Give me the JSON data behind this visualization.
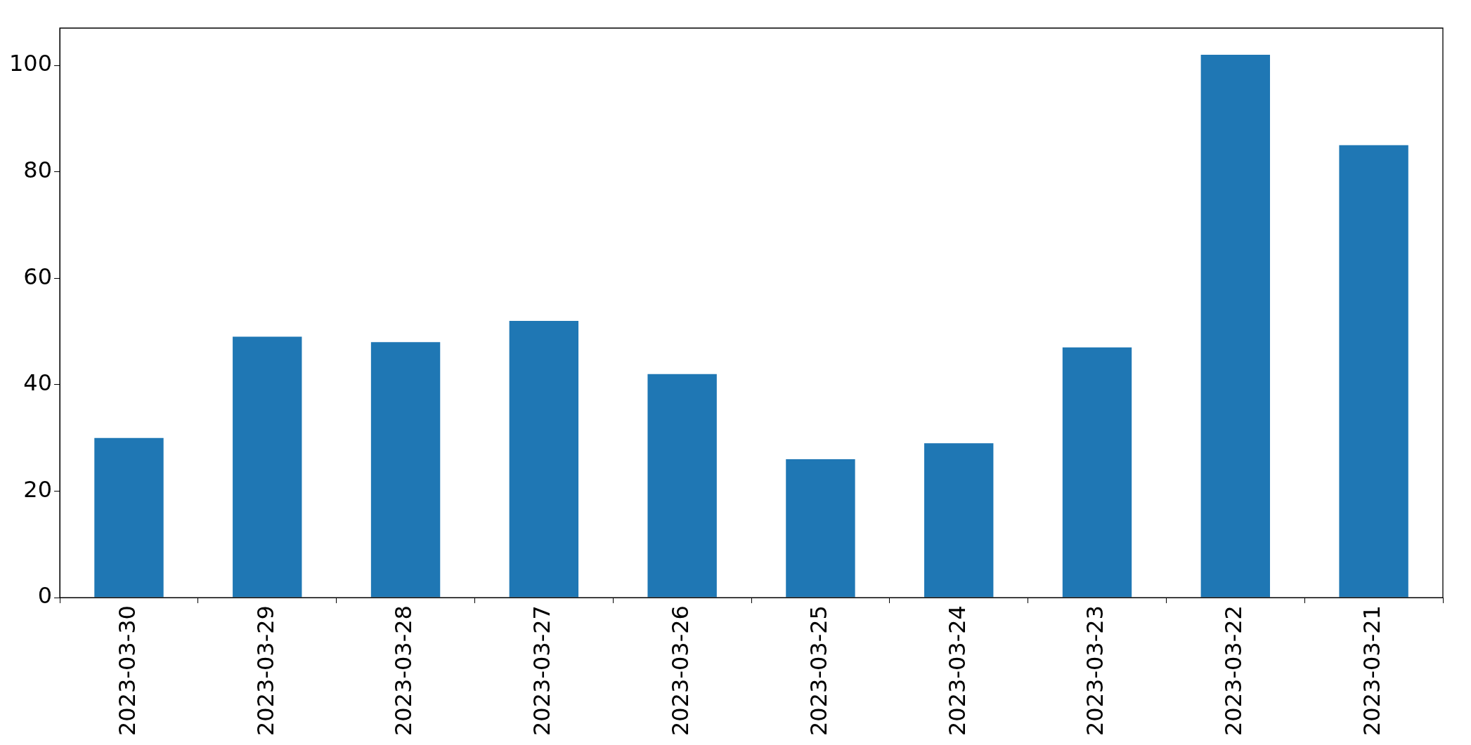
{
  "chart_data": {
    "type": "bar",
    "categories": [
      "2023-03-30",
      "2023-03-29",
      "2023-03-28",
      "2023-03-27",
      "2023-03-26",
      "2023-03-25",
      "2023-03-24",
      "2023-03-23",
      "2023-03-22",
      "2023-03-21"
    ],
    "values": [
      30,
      49,
      48,
      52,
      42,
      26,
      29,
      47,
      102,
      85
    ],
    "color": "#1f77b4",
    "ylim": [
      0,
      107
    ],
    "yticks": [
      0,
      20,
      40,
      60,
      80,
      100
    ],
    "grid": false,
    "legend": false
  }
}
